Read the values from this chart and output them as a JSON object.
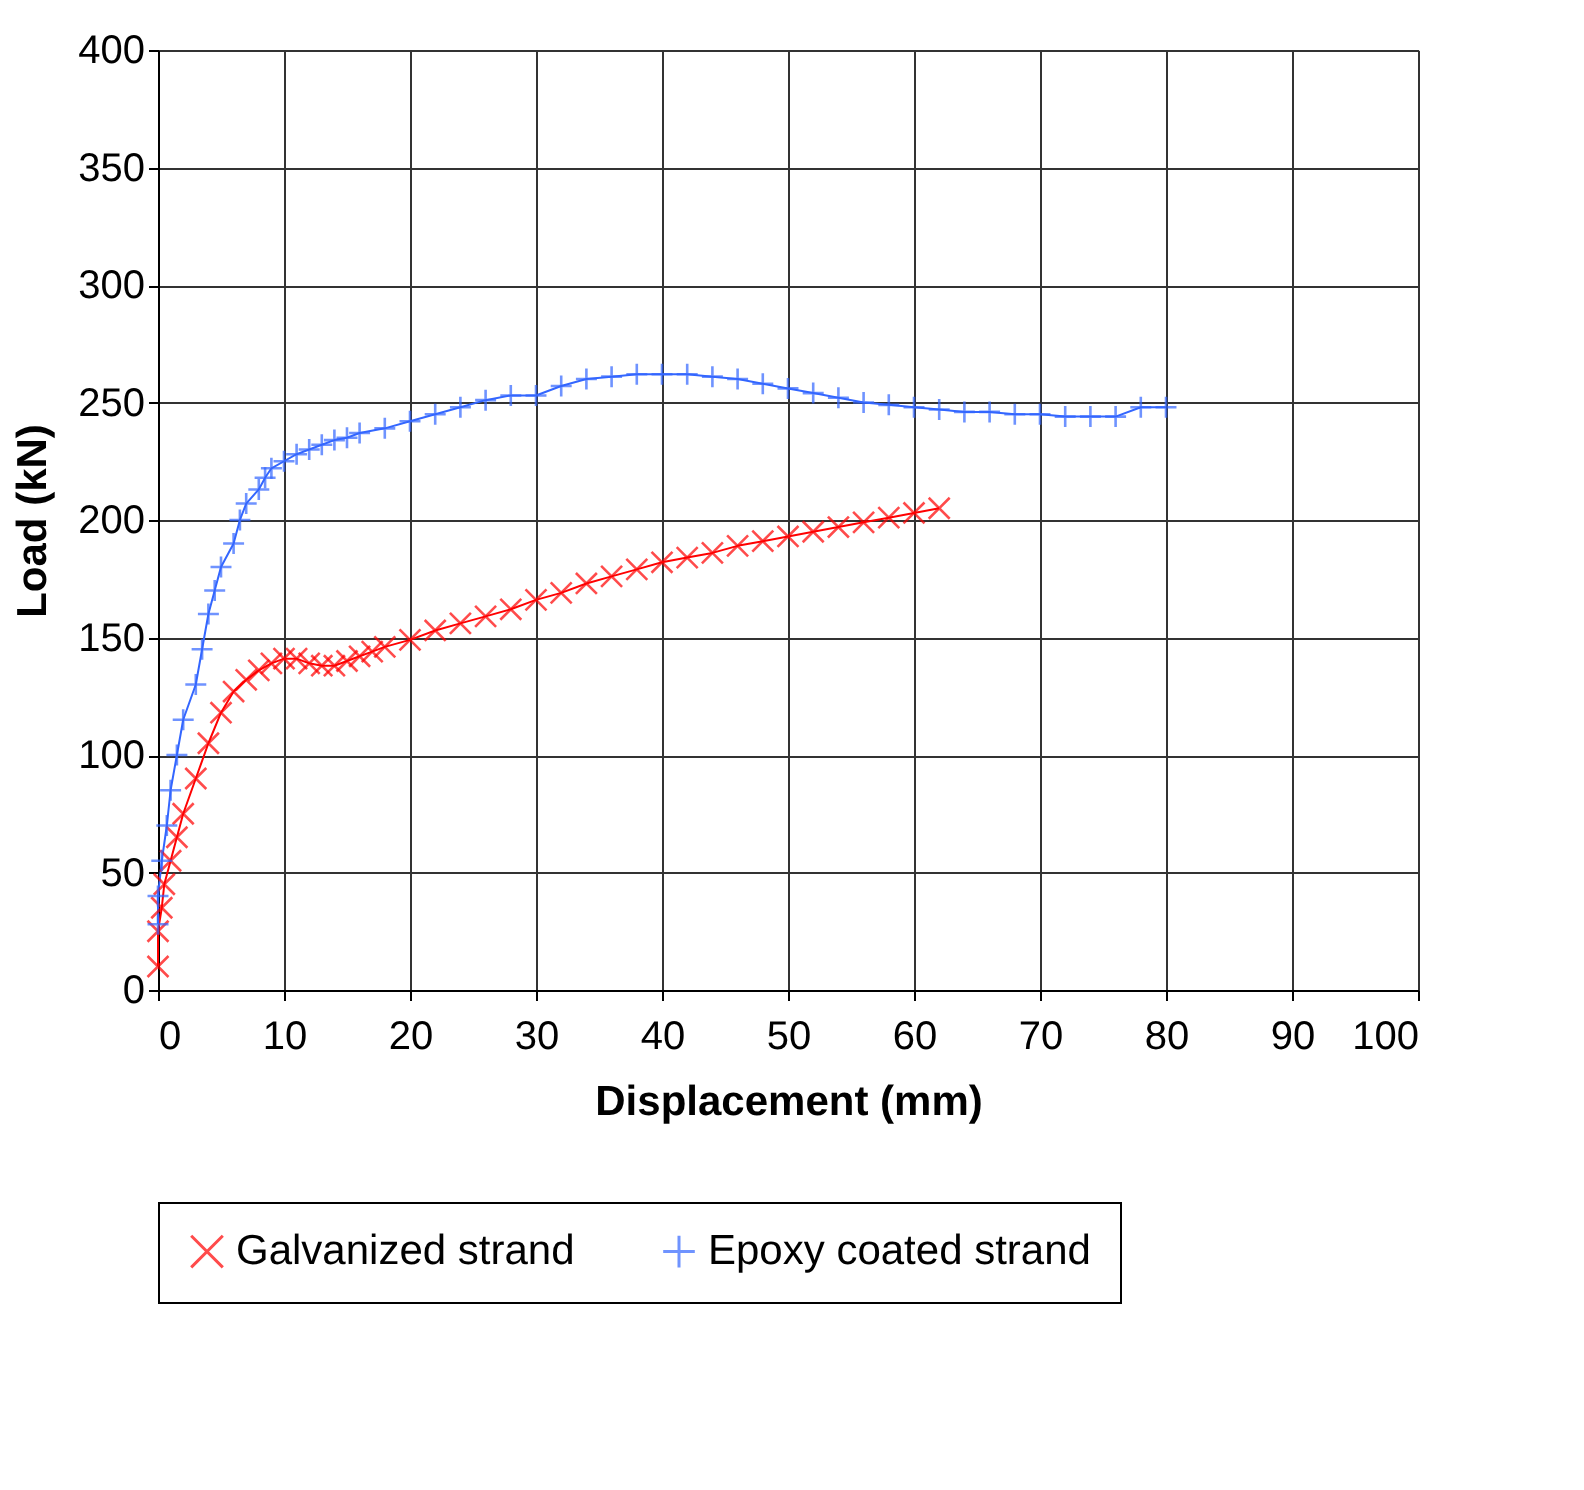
{
  "chart_data": {
    "type": "line",
    "xlabel": "Displacement (mm)",
    "ylabel": "Load (kN)",
    "xlim": [
      0,
      100
    ],
    "xticks": [
      0,
      10,
      20,
      30,
      40,
      50,
      60,
      70,
      80,
      90,
      100
    ],
    "ylim": [
      0,
      400
    ],
    "yticks": [
      0,
      50,
      100,
      150,
      200,
      250,
      300,
      350,
      400
    ],
    "grid": true,
    "legend": "bottom",
    "line_style": "solid",
    "series": [
      {
        "name": "Galvanized strand",
        "color": "#ff0000",
        "marker": "x",
        "x": [
          0,
          0,
          0.3,
          0.5,
          1,
          1.5,
          2,
          3,
          4,
          5,
          6,
          7,
          8,
          9,
          10,
          11,
          12,
          13,
          14,
          15,
          16,
          17,
          18,
          20,
          22,
          24,
          26,
          28,
          30,
          32,
          34,
          36,
          38,
          40,
          42,
          44,
          46,
          48,
          50,
          52,
          54,
          56,
          58,
          60,
          62
        ],
        "values": [
          10,
          25,
          35,
          45,
          55,
          65,
          75,
          90,
          105,
          118,
          127,
          132,
          136,
          139,
          141,
          141,
          139,
          138,
          138,
          140,
          142,
          144,
          146,
          149,
          153,
          156,
          159,
          162,
          166,
          169,
          173,
          176,
          179,
          182,
          184,
          186,
          189,
          191,
          193,
          195,
          197,
          199,
          201,
          203,
          205
        ]
      },
      {
        "name": "Epoxy coated strand",
        "color": "#3366ff",
        "marker": "cross",
        "x": [
          0,
          0,
          0.3,
          0.7,
          1,
          1.5,
          2,
          3,
          3.5,
          4,
          4.5,
          5,
          6,
          6.5,
          7,
          8,
          8.5,
          9,
          10,
          11,
          12,
          13,
          14,
          15,
          16,
          18,
          20,
          22,
          24,
          26,
          28,
          30,
          32,
          34,
          36,
          38,
          40,
          42,
          44,
          46,
          48,
          50,
          52,
          54,
          56,
          58,
          60,
          62,
          64,
          66,
          68,
          70,
          72,
          74,
          76,
          78,
          80
        ],
        "values": [
          28,
          40,
          55,
          70,
          85,
          100,
          115,
          130,
          145,
          160,
          170,
          180,
          190,
          200,
          207,
          213,
          218,
          222,
          225,
          228,
          230,
          232,
          234,
          235,
          237,
          239,
          242,
          245,
          248,
          251,
          253,
          253,
          257,
          260,
          261,
          262,
          262,
          262,
          261,
          260,
          258,
          256,
          254,
          252,
          250,
          249,
          248,
          247,
          246,
          246,
          245,
          245,
          244,
          244,
          244,
          248,
          248
        ]
      }
    ]
  }
}
